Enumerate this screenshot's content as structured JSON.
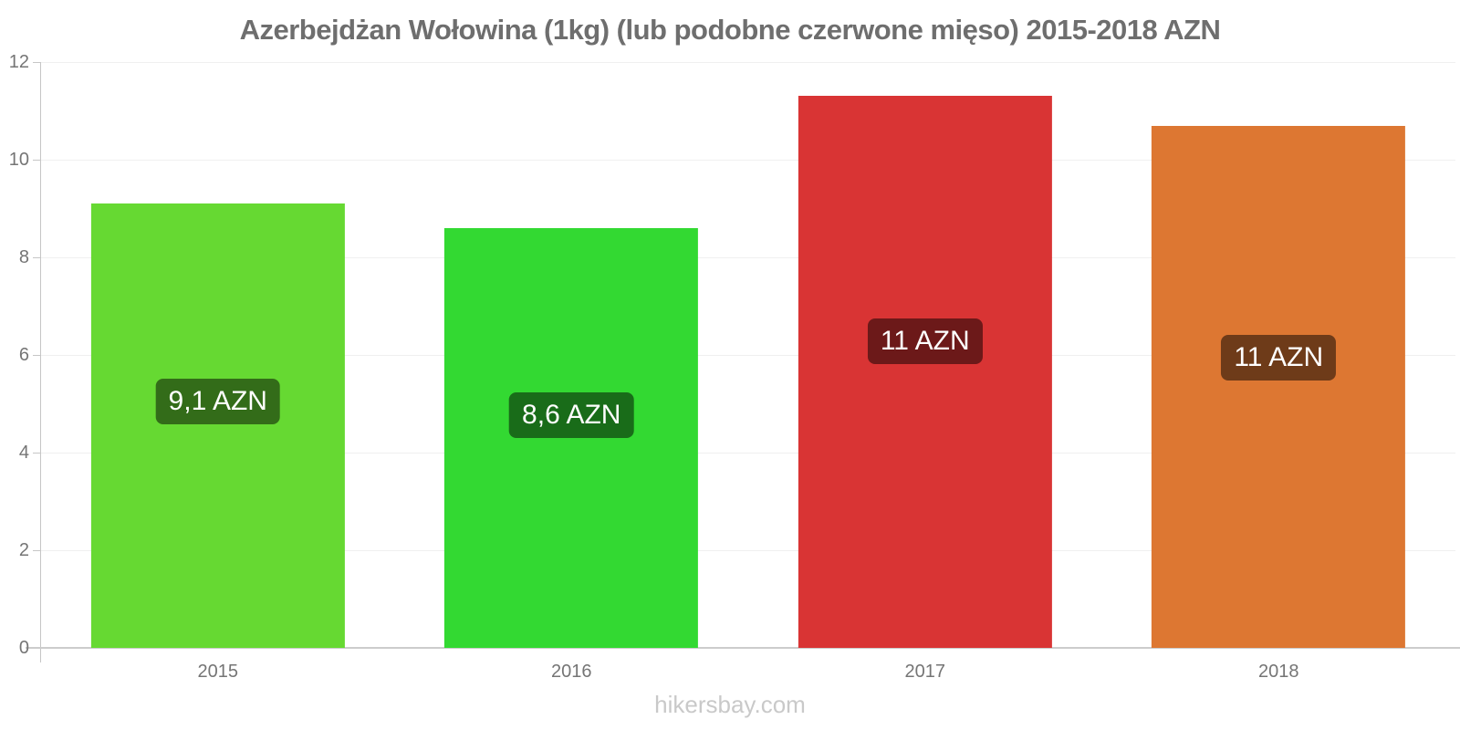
{
  "page": {
    "watermark": "hikersbay.com"
  },
  "chart_data": {
    "type": "bar",
    "title": "Azerbejdżan Wołowina (1kg) (lub podobne czerwone mięso) 2015-2018 AZN",
    "categories": [
      "2015",
      "2016",
      "2017",
      "2018"
    ],
    "values": [
      9.1,
      8.6,
      11.3,
      10.7
    ],
    "bar_labels": [
      "9,1 AZN",
      "8,6 AZN",
      "11 AZN",
      "11 AZN"
    ],
    "bar_colors": [
      "#66D932",
      "#33D932",
      "#D93434",
      "#DD7732"
    ],
    "label_bg_colors": [
      "#336C19",
      "#196C19",
      "#6C1919",
      "#6E3B19"
    ],
    "xlabel": "",
    "ylabel": "",
    "ylim": [
      0,
      12
    ],
    "yticks": [
      0,
      2,
      4,
      6,
      8,
      10,
      12
    ],
    "ytick_labels": [
      "0",
      "2",
      "4",
      "6",
      "8",
      "10",
      "12"
    ],
    "grid": "horizontal-light",
    "legend": "none",
    "currency": "AZN"
  }
}
